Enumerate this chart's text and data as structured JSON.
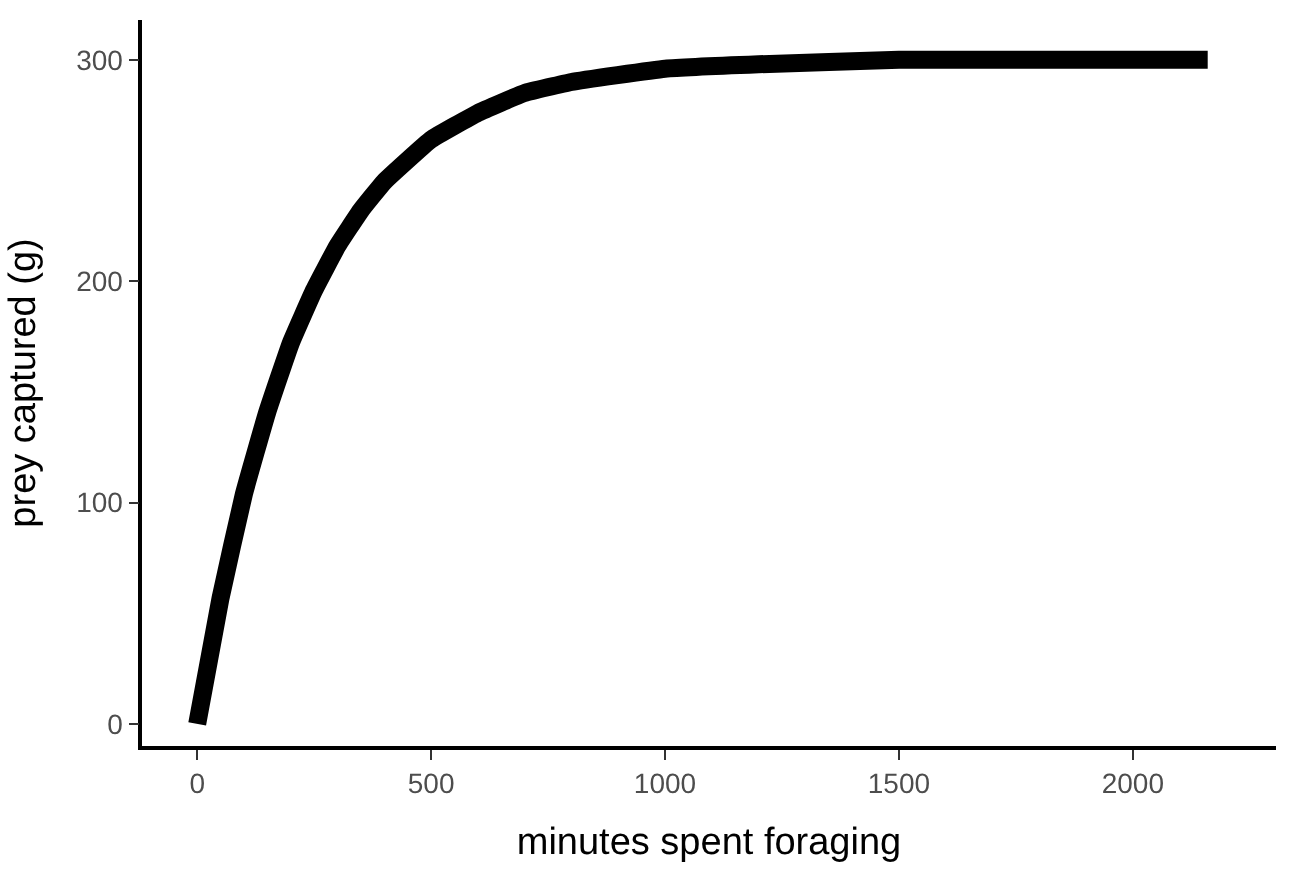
{
  "chart_data": {
    "type": "line",
    "xlabel": "minutes spent foraging",
    "ylabel": "prey captured (g)",
    "x": [
      0,
      50,
      100,
      150,
      200,
      250,
      300,
      350,
      400,
      500,
      600,
      700,
      800,
      1000,
      1200,
      1500,
      1800,
      2160
    ],
    "series": [
      {
        "color": "#000000",
        "values": [
          0,
          57,
          104,
          141,
          172,
          196,
          216,
          232,
          245,
          264,
          276,
          285,
          290,
          296,
          298,
          300,
          300,
          300
        ]
      }
    ],
    "xlim": [
      -118,
      2306
    ],
    "ylim": [
      -10,
      318
    ],
    "xticks": [
      0,
      500,
      1000,
      1500,
      2000
    ],
    "yticks": [
      0,
      100,
      200,
      300
    ],
    "grid": false,
    "marker": "none",
    "line_style": "solid"
  }
}
